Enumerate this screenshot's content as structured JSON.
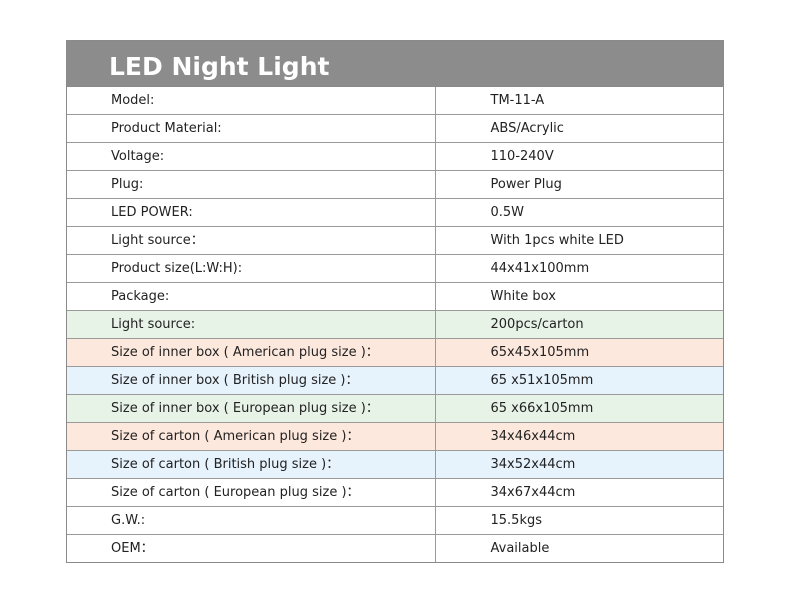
{
  "title": "LED Night Light",
  "row_colors": {
    "green": "#e8f3e8",
    "peach": "#fde8dd",
    "blue": "#e6f2fc",
    "header": "#8c8c8c"
  },
  "rows": [
    {
      "label": "Model:",
      "value": "TM-11-A",
      "bg": ""
    },
    {
      "label": "Product Material:",
      "value": "ABS/Acrylic",
      "bg": ""
    },
    {
      "label": "Voltage:",
      "value": "110-240V",
      "bg": ""
    },
    {
      "label": "Plug:",
      "value": "Power Plug",
      "bg": ""
    },
    {
      "label": "LED POWER:",
      "value": "0.5W",
      "bg": ""
    },
    {
      "label": "Light source：",
      "value": "With 1pcs white LED",
      "bg": ""
    },
    {
      "label": "Product size(L:W:H):",
      "value": "44x41x100mm",
      "bg": ""
    },
    {
      "label": "Package:",
      "value": "White box",
      "bg": ""
    },
    {
      "label": "Light source:",
      "value": "200pcs/carton",
      "bg": "green"
    },
    {
      "label": "Size of inner box ( American plug size )：",
      "value": "65x45x105mm",
      "bg": "peach"
    },
    {
      "label": "Size of inner box ( British  plug size  )：",
      "value": "65 x51x105mm",
      "bg": "blue"
    },
    {
      "label": "Size of inner box ( European plug size  )：",
      "value": "65 x66x105mm",
      "bg": "green"
    },
    {
      "label": "Size of carton ( American plug size )：",
      "value": "34x46x44cm",
      "bg": "peach"
    },
    {
      "label": "Size of carton ( British  plug size  )：",
      "value": "34x52x44cm",
      "bg": "blue"
    },
    {
      "label": "Size of carton ( European plug size  )：",
      "value": "34x67x44cm",
      "bg": ""
    },
    {
      "label": "G.W.:",
      "value": "15.5kgs",
      "bg": ""
    },
    {
      "label": "OEM：",
      "value": "Available",
      "bg": ""
    }
  ]
}
